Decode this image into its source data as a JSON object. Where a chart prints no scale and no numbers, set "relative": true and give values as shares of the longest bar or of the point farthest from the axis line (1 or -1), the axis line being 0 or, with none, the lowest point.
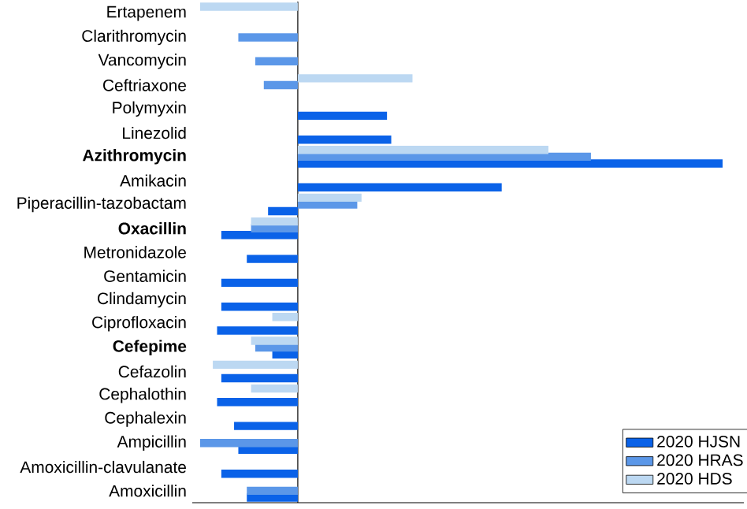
{
  "chart_data": {
    "type": "bar",
    "orientation": "horizontal",
    "relative": true,
    "legend": "bottom right",
    "categories": [
      "Ertapenem",
      "Clarithromycin",
      "Vancomycin",
      "Ceftriaxone",
      "Polymyxin",
      "Linezolid",
      "**Azithromycin**",
      "Amikacin",
      "Piperacillin-tazobactam",
      "**Oxacillin**",
      "Metronidazole",
      "Gentamicin",
      "Clindamycin",
      "Ciprofloxacin",
      "**Cefepime**",
      "Cefazolin",
      "Cephalothin",
      "Cephalexin",
      "Ampicillin",
      "Amoxicillin-clavulanate",
      "Amoxicillin"
    ],
    "series": [
      {
        "name": "2020 HJSN",
        "color": "#0a62e8",
        "values": [
          null,
          null,
          null,
          null,
          0.21,
          0.22,
          1,
          0.48,
          -0.07,
          -0.18,
          -0.12,
          -0.18,
          -0.18,
          -0.19,
          -0.06,
          -0.18,
          -0.19,
          -0.15,
          -0.14,
          -0.18,
          -0.12
        ]
      },
      {
        "name": "2020 HRAS",
        "color": "#5b97e8",
        "values": [
          null,
          -0.14,
          -0.1,
          -0.08,
          null,
          null,
          0.69,
          null,
          0.14,
          -0.11,
          null,
          null,
          null,
          null,
          -0.1,
          null,
          null,
          null,
          -0.23,
          null,
          -0.12
        ]
      },
      {
        "name": "2020 HDS",
        "color": "#bcd8f2",
        "values": [
          -0.23,
          null,
          null,
          0.27,
          null,
          null,
          0.59,
          null,
          0.15,
          -0.11,
          null,
          null,
          null,
          -0.06,
          -0.11,
          -0.2,
          -0.11,
          null,
          null,
          null,
          null
        ]
      }
    ]
  }
}
